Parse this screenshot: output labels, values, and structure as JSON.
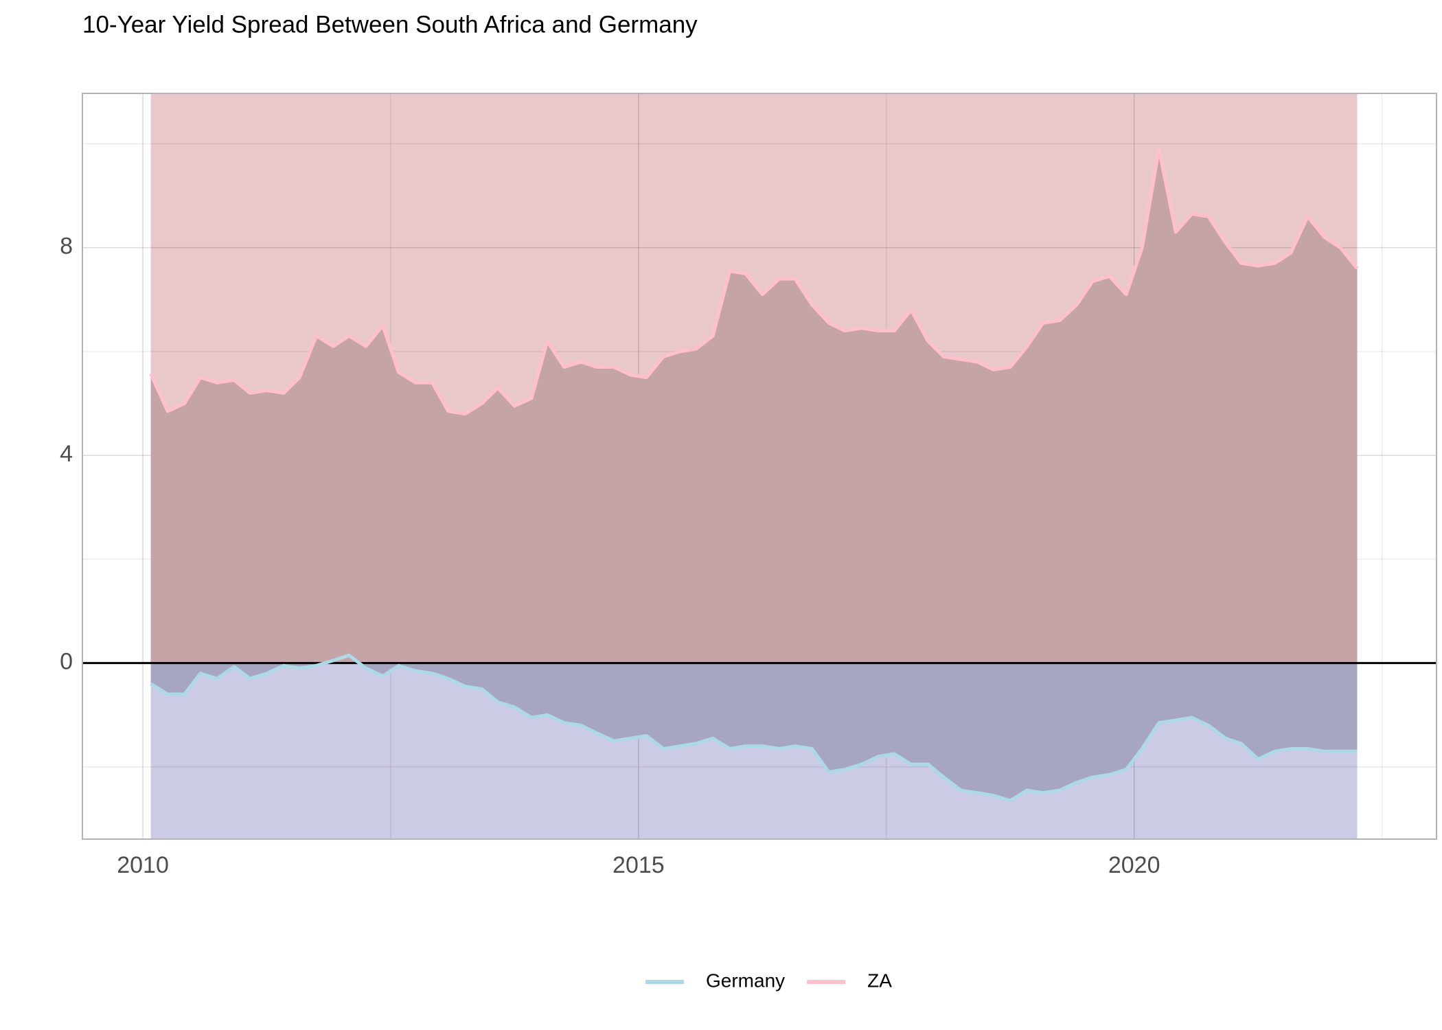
{
  "chart_data": {
    "type": "area-line",
    "title": "10-Year Yield Spread Between South Africa and Germany",
    "x": [
      2010.08,
      2010.25,
      2010.42,
      2010.58,
      2010.75,
      2010.92,
      2011.08,
      2011.25,
      2011.42,
      2011.58,
      2011.75,
      2011.92,
      2012.08,
      2012.25,
      2012.42,
      2012.58,
      2012.75,
      2012.92,
      2013.08,
      2013.25,
      2013.42,
      2013.58,
      2013.75,
      2013.92,
      2014.08,
      2014.25,
      2014.42,
      2014.58,
      2014.75,
      2014.92,
      2015.08,
      2015.25,
      2015.42,
      2015.58,
      2015.75,
      2015.92,
      2016.08,
      2016.25,
      2016.42,
      2016.58,
      2016.75,
      2016.92,
      2017.08,
      2017.25,
      2017.42,
      2017.58,
      2017.75,
      2017.92,
      2018.08,
      2018.25,
      2018.42,
      2018.58,
      2018.75,
      2018.92,
      2019.08,
      2019.25,
      2019.42,
      2019.58,
      2019.75,
      2019.92,
      2020.08,
      2020.25,
      2020.42,
      2020.58,
      2020.75,
      2020.92,
      2021.08,
      2021.25,
      2021.42,
      2021.58,
      2021.75,
      2021.92,
      2022.08,
      2022.25
    ],
    "series": [
      {
        "name": "Germany",
        "color": "#add8e6",
        "area_color": "#a6a6c3",
        "background_color": "#cccbe5",
        "values": [
          -0.4,
          -0.6,
          -0.6,
          -0.2,
          -0.3,
          -0.07,
          -0.3,
          -0.2,
          -0.05,
          -0.1,
          -0.05,
          0.05,
          0.15,
          -0.1,
          -0.25,
          -0.05,
          -0.15,
          -0.2,
          -0.3,
          -0.45,
          -0.5,
          -0.75,
          -0.85,
          -1.05,
          -1.0,
          -1.15,
          -1.2,
          -1.35,
          -1.5,
          -1.45,
          -1.4,
          -1.65,
          -1.6,
          -1.55,
          -1.45,
          -1.65,
          -1.6,
          -1.6,
          -1.65,
          -1.6,
          -1.65,
          -2.1,
          -2.05,
          -1.95,
          -1.8,
          -1.75,
          -1.95,
          -1.95,
          -2.2,
          -2.45,
          -2.5,
          -2.55,
          -2.65,
          -2.45,
          -2.5,
          -2.45,
          -2.3,
          -2.2,
          -2.15,
          -2.05,
          -1.65,
          -1.15,
          -1.1,
          -1.05,
          -1.2,
          -1.45,
          -1.55,
          -1.85,
          -1.7,
          -1.65,
          -1.65,
          -1.7,
          -1.7,
          -1.7
        ]
      },
      {
        "name": "ZA",
        "color": "#ffc0cb",
        "area_color": "#c4a4a7",
        "background_color": "#e9c8cc",
        "values": [
          5.57,
          4.85,
          5.0,
          5.5,
          5.4,
          5.45,
          5.2,
          5.25,
          5.2,
          5.5,
          6.3,
          6.1,
          6.3,
          6.1,
          6.5,
          5.6,
          5.4,
          5.4,
          4.85,
          4.8,
          5.0,
          5.3,
          4.95,
          5.1,
          6.2,
          5.7,
          5.8,
          5.7,
          5.7,
          5.55,
          5.5,
          5.9,
          6.0,
          6.05,
          6.3,
          7.55,
          7.5,
          7.1,
          7.4,
          7.4,
          6.9,
          6.55,
          6.4,
          6.45,
          6.4,
          6.4,
          6.8,
          6.2,
          5.9,
          5.85,
          5.8,
          5.65,
          5.7,
          6.1,
          6.55,
          6.6,
          6.9,
          7.35,
          7.45,
          7.1,
          8.0,
          9.9,
          8.3,
          8.65,
          8.6,
          8.1,
          7.7,
          7.65,
          7.7,
          7.9,
          8.6,
          8.2,
          8.0,
          7.6
        ]
      }
    ],
    "xlim": [
      2009.39,
      2023.05
    ],
    "xticks": [
      2010,
      2015,
      2020
    ],
    "ylim": [
      -3.39,
      10.97
    ],
    "yticks": [
      0,
      4,
      8
    ],
    "grid": true,
    "legend": "bottom"
  }
}
